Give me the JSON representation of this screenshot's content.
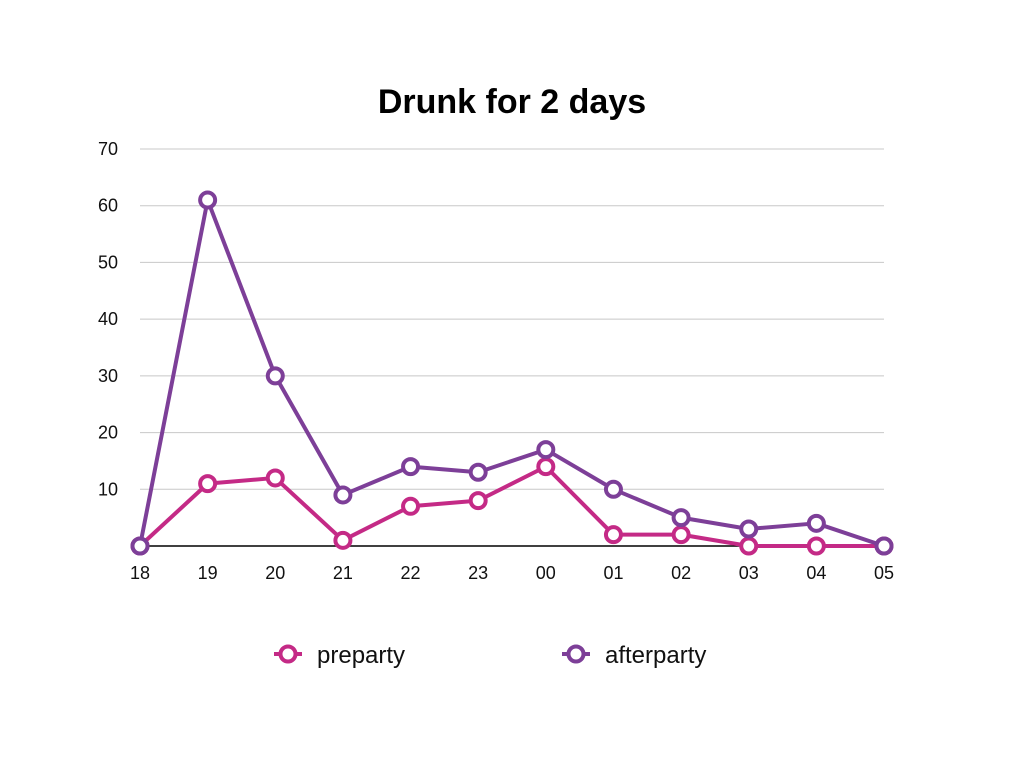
{
  "chart_data": {
    "type": "line",
    "title": "Drunk for 2 days",
    "xlabel": "",
    "ylabel": "",
    "categories": [
      "18",
      "19",
      "20",
      "21",
      "22",
      "23",
      "00",
      "01",
      "02",
      "03",
      "04",
      "05"
    ],
    "yticks": [
      "10",
      "20",
      "30",
      "40",
      "50",
      "60",
      "70"
    ],
    "ylim": [
      0,
      70
    ],
    "grid": true,
    "legend_position": "bottom",
    "series": [
      {
        "name": "preparty",
        "color": "#c42a86",
        "values": [
          0,
          11,
          12,
          1,
          7,
          8,
          14,
          2,
          2,
          0,
          0,
          0
        ]
      },
      {
        "name": "afterparty",
        "color": "#7d3f98",
        "values": [
          0,
          61,
          30,
          9,
          14,
          13,
          17,
          10,
          5,
          3,
          4,
          0
        ]
      }
    ]
  }
}
